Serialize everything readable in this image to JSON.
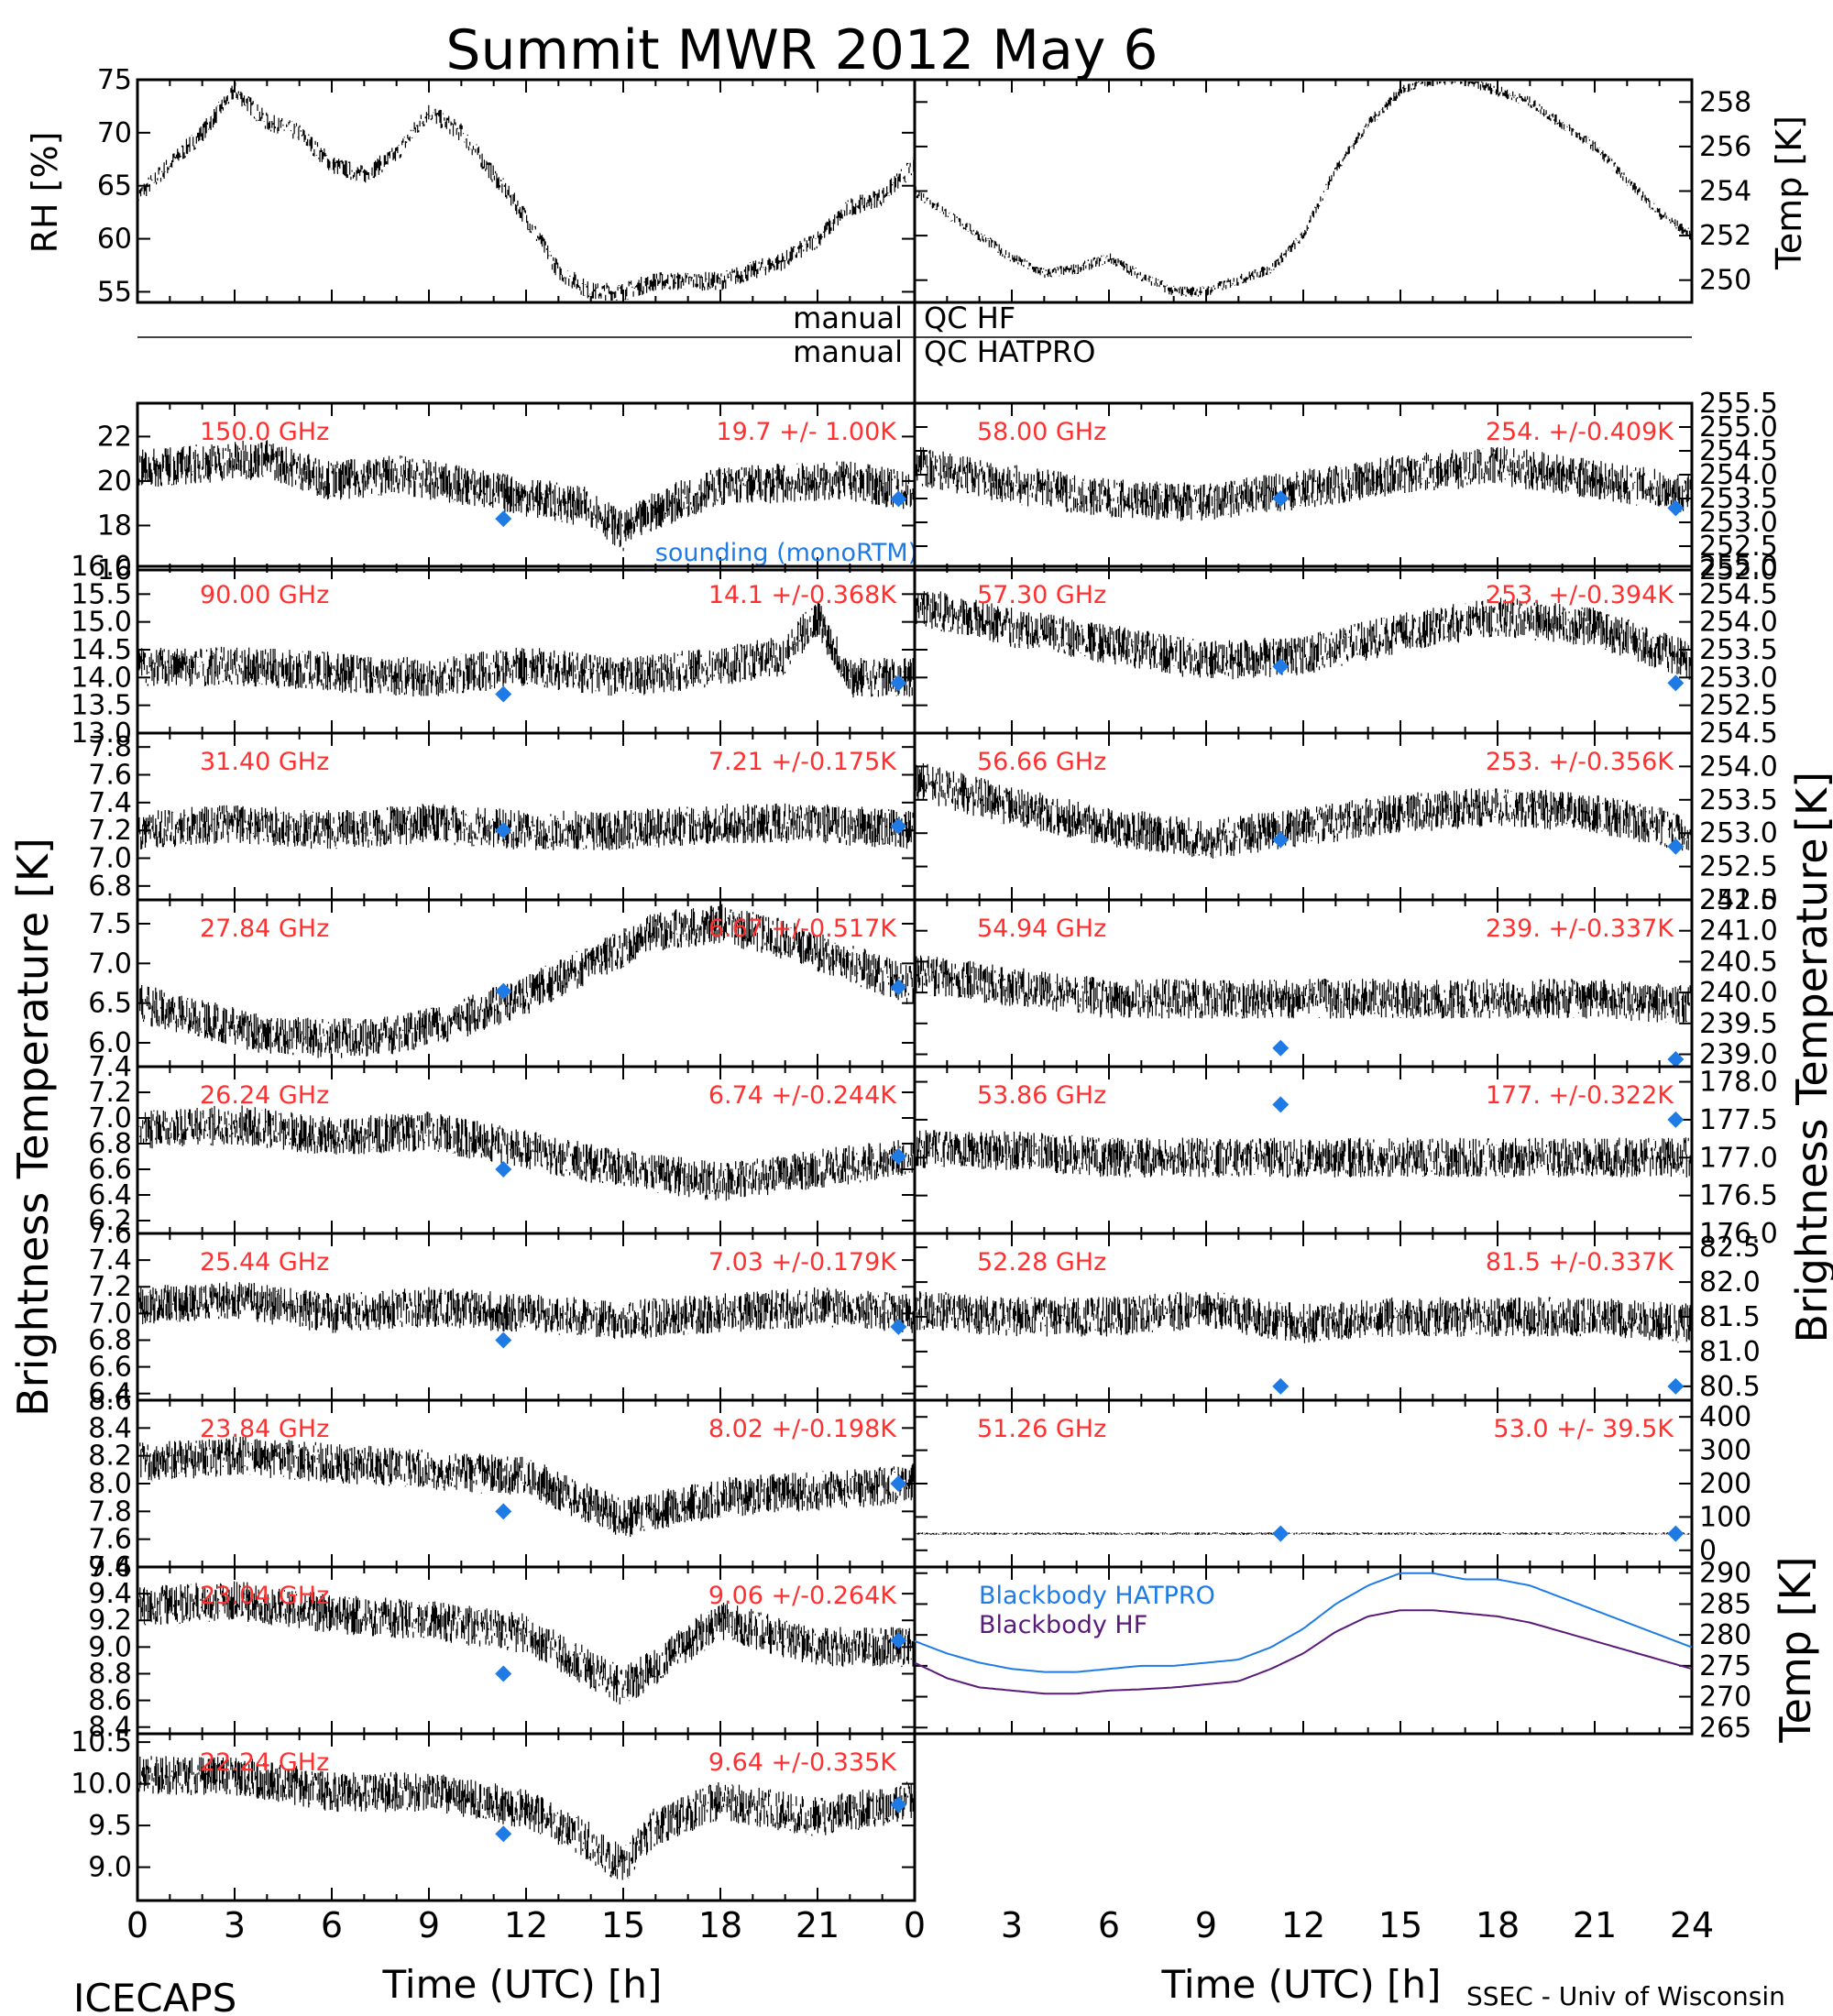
{
  "title": "Summit MWR 2012 May  6",
  "footer": {
    "left": "ICECAPS",
    "right": "SSEC - Univ of Wisconsin",
    "xlabel": "Time (UTC) [h]"
  },
  "qc": {
    "row1_left": "manual",
    "row1_right": "QC HF",
    "row2_left": "manual",
    "row2_right": "QC HATPRO"
  },
  "big_labels": {
    "left": "Brightness Temperature [K]",
    "right": "Brightness Temperature",
    "right_unit": "[K]"
  },
  "colors": {
    "data": "#000000",
    "sounding": "#1e7be6",
    "label": "#ff3030",
    "bb_hatpro": "#1e7be6",
    "bb_hf": "#5a1a7a"
  },
  "chart_data": [
    {
      "type": "line",
      "panel": "rh",
      "ylabel": "RH [%]",
      "ylim": [
        54,
        75
      ],
      "yticks": [
        "55",
        "60",
        "65",
        "70",
        "75"
      ],
      "x": [
        0,
        1,
        2,
        3,
        4,
        5,
        6,
        7,
        8,
        9,
        10,
        11,
        12,
        13,
        14,
        15,
        16,
        17,
        18,
        19,
        20,
        21,
        22,
        23,
        24
      ],
      "values": [
        64,
        67,
        70,
        74,
        71,
        70,
        67,
        66,
        68,
        72,
        70,
        66,
        62,
        57,
        55,
        55,
        56,
        56,
        56,
        57,
        58,
        60,
        63,
        64,
        67
      ]
    },
    {
      "type": "line",
      "panel": "temp",
      "ylabel": "Temp [K]",
      "ylim": [
        249,
        259
      ],
      "yticks": [
        "250",
        "252",
        "254",
        "256",
        "258"
      ],
      "x": [
        0,
        1,
        2,
        3,
        4,
        5,
        6,
        7,
        8,
        9,
        10,
        11,
        12,
        13,
        14,
        15,
        16,
        17,
        18,
        19,
        20,
        21,
        22,
        23,
        24
      ],
      "values": [
        254,
        253,
        252,
        251,
        250.3,
        250.5,
        251,
        250.2,
        249.5,
        249.5,
        250,
        250.5,
        252,
        255,
        257,
        258.5,
        259,
        259,
        258.5,
        258,
        257,
        256,
        254.5,
        253,
        252
      ]
    },
    {
      "type": "scatter",
      "side": "left",
      "label": "150.0 GHz",
      "stat": "19.7 +/-  1.00K",
      "ylim": [
        16,
        23.5
      ],
      "yticks": [
        "16",
        "18",
        "20",
        "22"
      ],
      "x": [
        0,
        2,
        4,
        6,
        8,
        10,
        12,
        14,
        15,
        16,
        18,
        20,
        22,
        24
      ],
      "values": [
        20.5,
        20.8,
        21,
        20,
        20.3,
        19.8,
        19.3,
        18.8,
        17.7,
        18.7,
        19.8,
        19.9,
        20,
        19.5
      ],
      "sounding": [
        {
          "x": 11.3,
          "y": 18.3
        },
        {
          "x": 23.5,
          "y": 19.2
        }
      ],
      "note": "sounding (monoRTM)"
    },
    {
      "type": "scatter",
      "side": "right",
      "label": "58.00 GHz",
      "stat": "254. +/-0.409K",
      "ylim": [
        252,
        255.5
      ],
      "yticks": [
        "252.0",
        "252.5",
        "253.0",
        "253.5",
        "254.0",
        "254.5",
        "255.0",
        "255.5"
      ],
      "x": [
        0,
        3,
        6,
        9,
        12,
        15,
        18,
        21,
        24
      ],
      "values": [
        254.2,
        253.8,
        253.5,
        253.4,
        253.7,
        254,
        254.2,
        253.9,
        253.6
      ],
      "sounding": [
        {
          "x": 11.3,
          "y": 253.5
        },
        {
          "x": 23.5,
          "y": 253.3
        }
      ]
    },
    {
      "type": "scatter",
      "side": "left",
      "label": "90.00 GHz",
      "stat": "14.1 +/-0.368K",
      "ylim": [
        13,
        16
      ],
      "yticks": [
        "13.0",
        "13.5",
        "14.0",
        "14.5",
        "15.0",
        "15.5",
        "16.0"
      ],
      "x": [
        0,
        3,
        6,
        9,
        12,
        15,
        18,
        20,
        21,
        22,
        24
      ],
      "values": [
        14.2,
        14.2,
        14.1,
        14,
        14.2,
        14,
        14.2,
        14.4,
        15.1,
        14,
        14
      ],
      "sounding": [
        {
          "x": 11.3,
          "y": 13.7
        },
        {
          "x": 23.5,
          "y": 13.9
        }
      ]
    },
    {
      "type": "scatter",
      "side": "right",
      "label": "57.30 GHz",
      "stat": "253. +/-0.394K",
      "ylim": [
        252,
        255
      ],
      "yticks": [
        "252.5",
        "253.0",
        "253.5",
        "254.0",
        "254.5",
        "255.0"
      ],
      "x": [
        0,
        3,
        6,
        9,
        12,
        15,
        18,
        21,
        24
      ],
      "values": [
        254.3,
        253.9,
        253.6,
        253.3,
        253.4,
        253.8,
        254.1,
        253.9,
        253.3
      ],
      "sounding": [
        {
          "x": 11.3,
          "y": 253.2
        },
        {
          "x": 23.5,
          "y": 252.9
        }
      ]
    },
    {
      "type": "scatter",
      "side": "left",
      "label": "31.40 GHz",
      "stat": "7.21 +/-0.175K",
      "ylim": [
        6.7,
        7.9
      ],
      "yticks": [
        "6.8",
        "7.0",
        "7.2",
        "7.4",
        "7.6",
        "7.8"
      ],
      "x": [
        0,
        3,
        6,
        9,
        12,
        15,
        18,
        21,
        24
      ],
      "values": [
        7.2,
        7.25,
        7.2,
        7.25,
        7.2,
        7.2,
        7.25,
        7.25,
        7.2
      ],
      "sounding": [
        {
          "x": 11.3,
          "y": 7.2
        },
        {
          "x": 23.5,
          "y": 7.23
        }
      ]
    },
    {
      "type": "scatter",
      "side": "right",
      "label": "56.66 GHz",
      "stat": "253. +/-0.356K",
      "ylim": [
        252,
        254.5
      ],
      "yticks": [
        "252.0",
        "252.5",
        "253.0",
        "253.5",
        "254.0",
        "254.5"
      ],
      "x": [
        0,
        3,
        6,
        9,
        12,
        15,
        18,
        21,
        24
      ],
      "values": [
        253.8,
        253.4,
        253.1,
        252.9,
        253.1,
        253.3,
        253.4,
        253.3,
        253.0
      ],
      "sounding": [
        {
          "x": 11.3,
          "y": 252.9
        },
        {
          "x": 23.5,
          "y": 252.8
        }
      ]
    },
    {
      "type": "scatter",
      "side": "left",
      "label": "27.84 GHz",
      "stat": "6.67 +/-0.517K",
      "ylim": [
        5.7,
        7.8
      ],
      "yticks": [
        "6.0",
        "6.5",
        "7.0",
        "7.5"
      ],
      "x": [
        0,
        2,
        4,
        6,
        8,
        10,
        12,
        14,
        16,
        18,
        20,
        22,
        24
      ],
      "values": [
        6.5,
        6.3,
        6.1,
        6.05,
        6.1,
        6.3,
        6.6,
        7.0,
        7.4,
        7.5,
        7.3,
        7.0,
        6.7
      ],
      "sounding": [
        {
          "x": 11.3,
          "y": 6.65
        },
        {
          "x": 23.5,
          "y": 6.7
        }
      ]
    },
    {
      "type": "scatter",
      "side": "right",
      "label": "54.94 GHz",
      "stat": "239. +/-0.337K",
      "ylim": [
        238.8,
        241.5
      ],
      "yticks": [
        "239.0",
        "239.5",
        "240.0",
        "240.5",
        "241.0",
        "241.5"
      ],
      "x": [
        0,
        3,
        6,
        9,
        12,
        15,
        18,
        21,
        24
      ],
      "values": [
        240.3,
        240.1,
        239.9,
        239.9,
        239.9,
        239.9,
        239.9,
        239.9,
        239.8
      ],
      "sounding": [
        {
          "x": 11.3,
          "y": 239.1
        },
        {
          "x": 23.5,
          "y": 238.9
        }
      ]
    },
    {
      "type": "scatter",
      "side": "left",
      "label": "26.24 GHz",
      "stat": "6.74 +/-0.244K",
      "ylim": [
        6.1,
        7.4
      ],
      "yticks": [
        "6.2",
        "6.4",
        "6.6",
        "6.8",
        "7.0",
        "7.2",
        "7.4"
      ],
      "x": [
        0,
        3,
        6,
        9,
        12,
        15,
        18,
        21,
        24
      ],
      "values": [
        6.9,
        6.95,
        6.85,
        6.9,
        6.75,
        6.6,
        6.5,
        6.6,
        6.7
      ],
      "sounding": [
        {
          "x": 11.3,
          "y": 6.6
        },
        {
          "x": 23.5,
          "y": 6.7
        }
      ]
    },
    {
      "type": "scatter",
      "side": "right",
      "label": "53.86 GHz",
      "stat": "177. +/-0.322K",
      "ylim": [
        176,
        178.2
      ],
      "yticks": [
        "176.0",
        "176.5",
        "177.0",
        "177.5",
        "178.0"
      ],
      "x": [
        0,
        3,
        6,
        9,
        12,
        15,
        18,
        21,
        24
      ],
      "values": [
        177.1,
        177.1,
        177,
        177,
        177,
        177,
        177,
        177,
        177
      ],
      "sounding": [
        {
          "x": 11.3,
          "y": 177.7
        },
        {
          "x": 23.5,
          "y": 177.5
        }
      ]
    },
    {
      "type": "scatter",
      "side": "left",
      "label": "25.44 GHz",
      "stat": "7.03 +/-0.179K",
      "ylim": [
        6.35,
        7.6
      ],
      "yticks": [
        "6.4",
        "6.6",
        "6.8",
        "7.0",
        "7.2",
        "7.4",
        "7.6"
      ],
      "x": [
        0,
        3,
        6,
        9,
        12,
        15,
        18,
        21,
        24
      ],
      "values": [
        7.05,
        7.1,
        7.0,
        7.05,
        7.0,
        6.95,
        7.0,
        7.05,
        7.0
      ],
      "sounding": [
        {
          "x": 11.3,
          "y": 6.8
        },
        {
          "x": 23.5,
          "y": 6.9
        }
      ]
    },
    {
      "type": "scatter",
      "side": "right",
      "label": "52.28 GHz",
      "stat": "81.5 +/-0.337K",
      "ylim": [
        80.3,
        82.7
      ],
      "yticks": [
        "80.5",
        "81.0",
        "81.5",
        "82.0",
        "82.5"
      ],
      "x": [
        0,
        3,
        6,
        9,
        12,
        15,
        18,
        21,
        24
      ],
      "values": [
        81.6,
        81.5,
        81.5,
        81.6,
        81.4,
        81.5,
        81.5,
        81.5,
        81.4
      ],
      "sounding": [
        {
          "x": 11.3,
          "y": 80.5
        },
        {
          "x": 23.5,
          "y": 80.5
        }
      ]
    },
    {
      "type": "scatter",
      "side": "left",
      "label": "23.84 GHz",
      "stat": "8.02 +/-0.198K",
      "ylim": [
        7.4,
        8.6
      ],
      "yticks": [
        "7.4",
        "7.6",
        "7.8",
        "8.0",
        "8.2",
        "8.4",
        "8.6"
      ],
      "x": [
        0,
        3,
        6,
        9,
        12,
        15,
        18,
        21,
        24
      ],
      "values": [
        8.15,
        8.2,
        8.15,
        8.1,
        8.05,
        7.75,
        7.9,
        7.95,
        8.0
      ],
      "sounding": [
        {
          "x": 11.3,
          "y": 7.8
        },
        {
          "x": 23.5,
          "y": 8.0
        }
      ]
    },
    {
      "type": "scatter",
      "side": "right",
      "label": "51.26 GHz",
      "stat": "53.0 +/- 39.5K",
      "ylim": [
        -50,
        450
      ],
      "yticks": [
        "0",
        "100",
        "200",
        "300",
        "400"
      ],
      "x": [
        0,
        24
      ],
      "values": [
        50,
        50
      ],
      "sounding": [
        {
          "x": 11.3,
          "y": 50
        },
        {
          "x": 23.5,
          "y": 50
        }
      ]
    },
    {
      "type": "scatter",
      "side": "left",
      "label": "23.04 GHz",
      "stat": "9.06 +/-0.264K",
      "ylim": [
        8.35,
        9.6
      ],
      "yticks": [
        "8.4",
        "8.6",
        "8.8",
        "9.0",
        "9.2",
        "9.4",
        "9.6"
      ],
      "x": [
        0,
        3,
        6,
        9,
        12,
        15,
        18,
        21,
        24
      ],
      "values": [
        9.3,
        9.35,
        9.25,
        9.2,
        9.1,
        8.7,
        9.2,
        9.0,
        9.0
      ],
      "sounding": [
        {
          "x": 11.3,
          "y": 8.8
        },
        {
          "x": 23.5,
          "y": 9.05
        }
      ]
    },
    {
      "type": "line",
      "side": "right",
      "panel": "blackbody",
      "ylabel": "Temp [K]",
      "ylim": [
        264,
        291
      ],
      "yticks": [
        "265",
        "270",
        "275",
        "280",
        "285",
        "290"
      ],
      "x": [
        0,
        1,
        2,
        3,
        4,
        5,
        6,
        7,
        8,
        9,
        10,
        11,
        12,
        13,
        14,
        15,
        16,
        17,
        18,
        19,
        20,
        21,
        22,
        23,
        24
      ],
      "series": [
        {
          "name": "Blackbody HATPRO",
          "values": [
            279,
            277,
            275.5,
            274.5,
            274,
            274,
            274.5,
            275,
            275,
            275.5,
            276,
            278,
            281,
            285,
            288,
            290,
            290,
            289,
            289,
            288,
            286,
            284,
            282,
            280,
            278
          ]
        },
        {
          "name": "Blackbody HF",
          "values": [
            275.5,
            273,
            271.5,
            271,
            270.5,
            270.5,
            271,
            271.2,
            271.5,
            272,
            272.5,
            274.5,
            277,
            280.5,
            283,
            284,
            284,
            283.5,
            283,
            282,
            280.5,
            279,
            277.5,
            276,
            274.5
          ]
        }
      ]
    },
    {
      "type": "scatter",
      "side": "left",
      "label": "22.24 GHz",
      "stat": "9.64 +/-0.335K",
      "ylim": [
        8.6,
        10.6
      ],
      "yticks": [
        "9.0",
        "9.5",
        "10.0",
        "10.5"
      ],
      "x": [
        0,
        3,
        6,
        9,
        12,
        14,
        15,
        16,
        18,
        21,
        24
      ],
      "values": [
        10.1,
        10.1,
        9.9,
        9.9,
        9.7,
        9.3,
        9.0,
        9.5,
        9.8,
        9.6,
        9.8
      ],
      "sounding": [
        {
          "x": 11.3,
          "y": 9.4
        },
        {
          "x": 23.5,
          "y": 9.75
        }
      ]
    }
  ],
  "xticks": [
    "0",
    "3",
    "6",
    "9",
    "12",
    "15",
    "18",
    "21",
    "24"
  ],
  "xticks_left": [
    "0",
    "3",
    "6",
    "9",
    "12",
    "15",
    "18",
    "21"
  ]
}
